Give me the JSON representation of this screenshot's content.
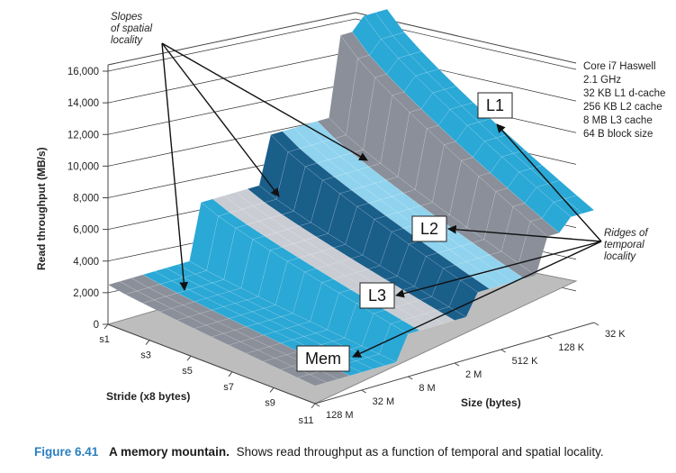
{
  "chart_data": {
    "type": "surface",
    "ylabel": "Read throughput (MB/s)",
    "xlabel": "Stride (x8 bytes)",
    "zlabel": "Size (bytes)",
    "y_ticks": [
      "0",
      "2,000",
      "4,000",
      "6,000",
      "8,000",
      "10,000",
      "12,000",
      "14,000",
      "16,000"
    ],
    "ylim": [
      0,
      16000
    ],
    "strides": [
      "s1",
      "s3",
      "s5",
      "s7",
      "s9",
      "s11"
    ],
    "sizes": [
      "32 K",
      "128 K",
      "512 K",
      "2 M",
      "8 M",
      "32 M",
      "128 M"
    ],
    "bands": [
      {
        "level": "L1",
        "approx_throughput": 14000
      },
      {
        "level": "L2",
        "approx_throughput": 9000
      },
      {
        "level": "L3",
        "approx_throughput": 6000
      },
      {
        "level": "Mem",
        "approx_throughput": 2500
      }
    ],
    "annotations": {
      "slopes": "Slopes\nof spatial\nlocality",
      "ridges": "Ridges of\ntemporal\nlocality",
      "level_labels": [
        "L1",
        "L2",
        "L3",
        "Mem"
      ]
    },
    "system_info": [
      "Core i7 Haswell",
      "2.1 GHz",
      "32 KB L1 d-cache",
      "256 KB L2 cache",
      "8 MB L3 cache",
      "64 B block size"
    ],
    "colors": {
      "cyan": "#2aa8d6",
      "light_cyan": "#8fd3ee",
      "dark_blue": "#1a5e8a",
      "gray": "#8a8f99",
      "light_gray": "#c9ccd2",
      "floor": "#b9b9b9"
    }
  },
  "caption": {
    "number": "Figure 6.41",
    "title": "A memory mountain.",
    "text": "Shows read throughput as a function of temporal and spatial locality."
  }
}
